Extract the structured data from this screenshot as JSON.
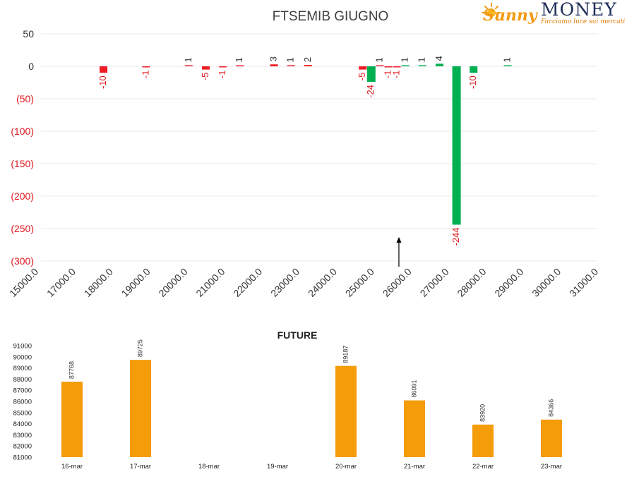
{
  "logo": {
    "brand_part1": "Sunny",
    "brand_part2": "MONEY",
    "tagline": "Facciamo luce sui mercati"
  },
  "colors": {
    "call_bar": "#ee1c25",
    "put_bar": "#00b050",
    "negative_axis_label": "#e0191f",
    "future_bar": "#f59c0a",
    "gridline": "#eaeaea"
  },
  "chart_data": [
    {
      "type": "bar",
      "title": "FTSEMIB GIUGNO",
      "ylim": [
        -300,
        50
      ],
      "y_ticks": [
        {
          "value": 50,
          "label": "50"
        },
        {
          "value": 0,
          "label": "0"
        },
        {
          "value": -50,
          "label": "(50)"
        },
        {
          "value": -100,
          "label": "(100)"
        },
        {
          "value": -150,
          "label": "(150)"
        },
        {
          "value": -200,
          "label": "(200)"
        },
        {
          "value": -250,
          "label": "(250)"
        },
        {
          "value": -300,
          "label": "(300)"
        }
      ],
      "negative_tick_color": "red",
      "x_ticks": [
        "15000.0",
        "17000.0",
        "18000.0",
        "19000.0",
        "20000.0",
        "21000.0",
        "22000.0",
        "23000.0",
        "24000.0",
        "25000.0",
        "26000.0",
        "27000.0",
        "28000.0",
        "29000.0",
        "30000.0",
        "31000.0"
      ],
      "x_range": [
        15000,
        31000
      ],
      "series": [
        {
          "color": "red",
          "points": [
            {
              "x": 16750,
              "value": -10
            },
            {
              "x": 18000,
              "value": -1
            },
            {
              "x": 19250,
              "value": 1
            },
            {
              "x": 19750,
              "value": -5
            },
            {
              "x": 20250,
              "value": -1
            },
            {
              "x": 20750,
              "value": 1
            },
            {
              "x": 21750,
              "value": 3
            },
            {
              "x": 22250,
              "value": 1
            },
            {
              "x": 22750,
              "value": 2
            },
            {
              "x": 24350,
              "value": -5
            },
            {
              "x": 24850,
              "value": 1
            },
            {
              "x": 25100,
              "value": -1
            },
            {
              "x": 25350,
              "value": -1
            }
          ]
        },
        {
          "color": "green",
          "points": [
            {
              "x": 24600,
              "value": -24
            },
            {
              "x": 25600,
              "value": 1
            },
            {
              "x": 26100,
              "value": 1
            },
            {
              "x": 26600,
              "value": 4
            },
            {
              "x": 27100,
              "value": -244
            },
            {
              "x": 27600,
              "value": -10
            },
            {
              "x": 28600,
              "value": 1
            }
          ]
        }
      ],
      "annotation": {
        "type": "arrow",
        "x": 25100,
        "direction": "up"
      },
      "grid": true
    },
    {
      "type": "bar",
      "title": "FUTURE",
      "categories": [
        "16-mar",
        "17-mar",
        "18-mar",
        "19-mar",
        "20-mar",
        "21-mar",
        "22-mar",
        "23-mar"
      ],
      "values": [
        87768,
        89725,
        null,
        null,
        89187,
        86091,
        83920,
        84366
      ],
      "data_labels": [
        "87768",
        "89725",
        "",
        "",
        "89187",
        "86091",
        "83920",
        "84366"
      ],
      "ylim": [
        81000,
        91000
      ],
      "y_ticks": [
        "81000",
        "82000",
        "83000",
        "84000",
        "85000",
        "86000",
        "87000",
        "88000",
        "89000",
        "90000",
        "91000"
      ],
      "color": "orange",
      "grid": false
    }
  ]
}
